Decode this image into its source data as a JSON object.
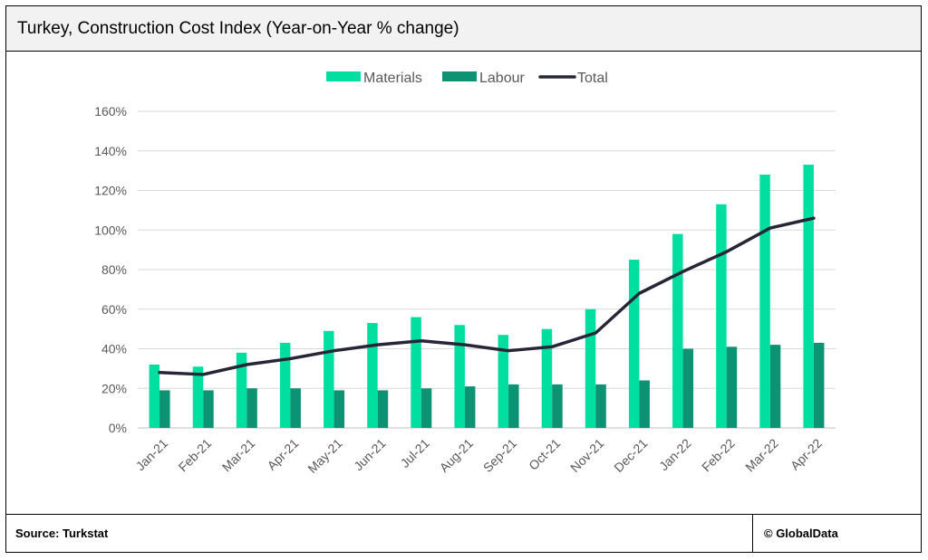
{
  "title": "Turkey, Construction Cost Index (Year-on-Year % change)",
  "footer": {
    "source": "Source: Turkstat",
    "copyright": "© GlobalData"
  },
  "colors": {
    "materials": "#00DFA0",
    "labour": "#0E9274",
    "total": "#262637",
    "grid": "#d9d9d9",
    "axis_text": "#595959"
  },
  "chart_data": {
    "type": "bar",
    "categories": [
      "Jan-21",
      "Feb-21",
      "Mar-21",
      "Apr-21",
      "May-21",
      "Jun-21",
      "Jul-21",
      "Aug-21",
      "Sep-21",
      "Oct-21",
      "Nov-21",
      "Dec-21",
      "Jan-22",
      "Feb-22",
      "Mar-22",
      "Apr-22"
    ],
    "series": [
      {
        "name": "Materials",
        "type": "bar",
        "values": [
          32,
          31,
          38,
          43,
          49,
          53,
          56,
          52,
          47,
          50,
          60,
          85,
          98,
          113,
          128,
          133
        ]
      },
      {
        "name": "Labour",
        "type": "bar",
        "values": [
          19,
          19,
          20,
          20,
          19,
          19,
          20,
          21,
          22,
          22,
          22,
          24,
          40,
          41,
          42,
          43
        ]
      },
      {
        "name": "Total",
        "type": "line",
        "values": [
          28,
          27,
          32,
          35,
          39,
          42,
          44,
          42,
          39,
          41,
          48,
          68,
          79,
          89,
          101,
          106
        ]
      }
    ],
    "yticks": [
      "0%",
      "20%",
      "40%",
      "60%",
      "80%",
      "100%",
      "120%",
      "140%",
      "160%"
    ],
    "ylim": [
      0,
      160
    ],
    "grid": true,
    "legend_position": "top-center"
  }
}
